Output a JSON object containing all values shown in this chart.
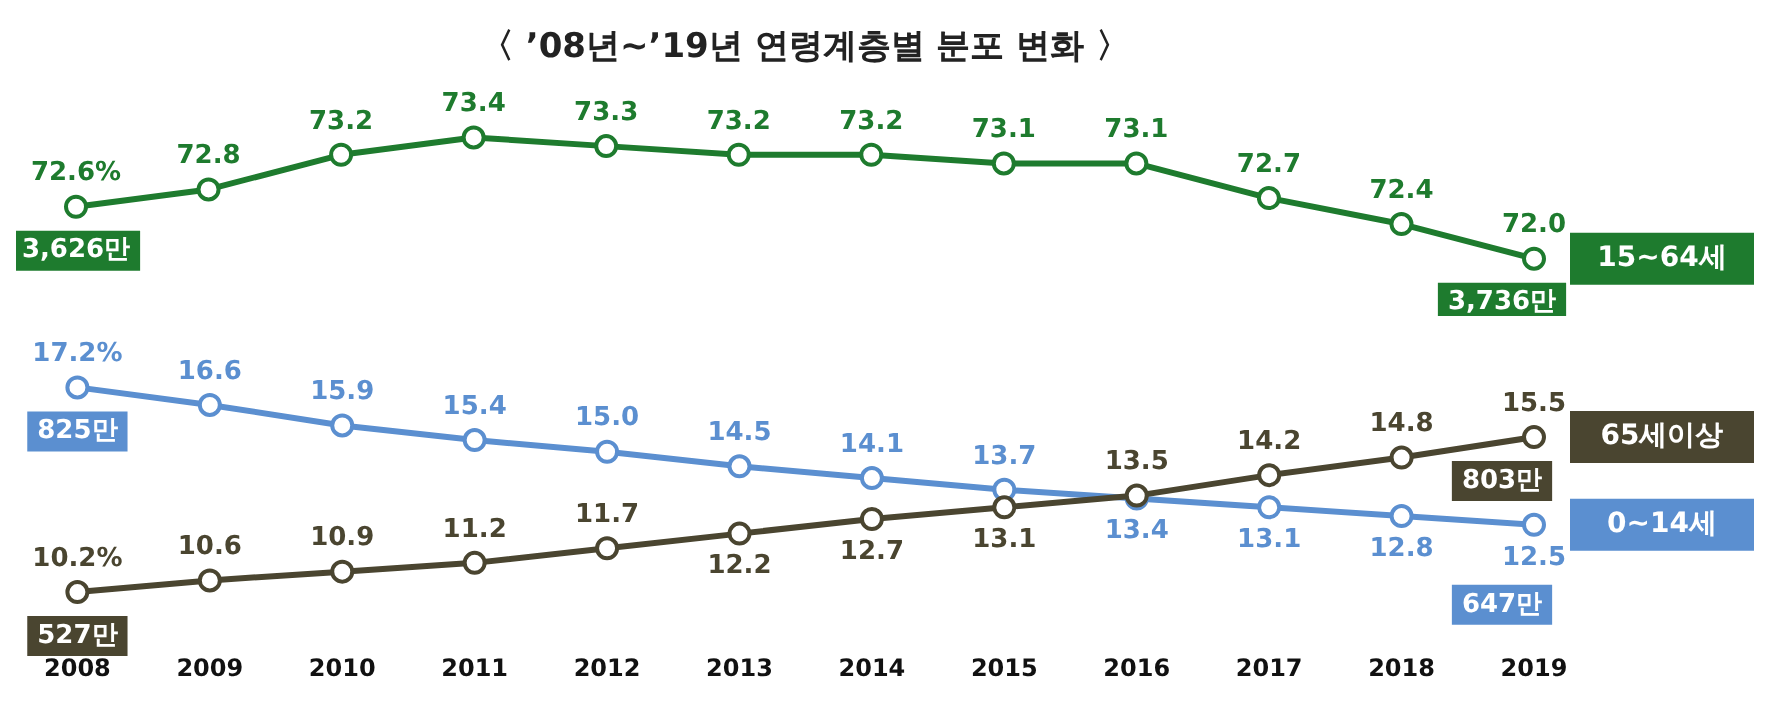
{
  "chart_data": [
    {
      "type": "line",
      "title": "〈 ’08년~’19년 연령계층별 분포 변화 〉",
      "categories": [
        "2008",
        "2009",
        "2010",
        "2011",
        "2012",
        "2013",
        "2014",
        "2015",
        "2016",
        "2017",
        "2018",
        "2019"
      ],
      "series": [
        {
          "name": "15~64세",
          "color": "#1e7b2e",
          "values": [
            72.6,
            72.8,
            73.2,
            73.4,
            73.3,
            73.2,
            73.2,
            73.1,
            73.1,
            72.7,
            72.4,
            72.0
          ],
          "value_labels": [
            "72.6%",
            "72.8",
            "73.2",
            "73.4",
            "73.3",
            "73.2",
            "73.2",
            "73.1",
            "73.1",
            "72.7",
            "72.4",
            "72.0"
          ]
        }
      ],
      "annotations": [
        {
          "text": "3,626만",
          "x": "2008",
          "y": 72.6
        },
        {
          "text": "3,736만",
          "x": "2019",
          "y": 72.0
        }
      ],
      "tick_labels": false,
      "grid": false,
      "marker": "circle",
      "line_style": "solid",
      "legend": "right"
    },
    {
      "type": "line",
      "categories": [
        "2008",
        "2009",
        "2010",
        "2011",
        "2012",
        "2013",
        "2014",
        "2015",
        "2016",
        "2017",
        "2018",
        "2019"
      ],
      "series": [
        {
          "name": "65세이상",
          "color": "#4a4530",
          "values": [
            10.2,
            10.6,
            10.9,
            11.2,
            11.7,
            12.2,
            12.7,
            13.1,
            13.5,
            14.2,
            14.8,
            15.5
          ],
          "value_labels": [
            "10.2%",
            "10.6",
            "10.9",
            "11.2",
            "11.7",
            "12.2",
            "12.7",
            "13.1",
            "13.5",
            "14.2",
            "14.8",
            "15.5"
          ]
        },
        {
          "name": "0~14세",
          "color": "#5b8fd0",
          "values": [
            17.2,
            16.6,
            15.9,
            15.4,
            15.0,
            14.5,
            14.1,
            13.7,
            13.4,
            13.1,
            12.8,
            12.5
          ],
          "value_labels": [
            "17.2%",
            "16.6",
            "15.9",
            "15.4",
            "15.0",
            "14.5",
            "14.1",
            "13.7",
            "13.4",
            "13.1",
            "12.8",
            "12.5"
          ]
        }
      ],
      "annotations": [
        {
          "text": "527만",
          "x": "2008",
          "y": 10.2
        },
        {
          "text": "803만",
          "x": "2019",
          "y": 15.5
        },
        {
          "text": "825만",
          "x": "2008",
          "y": 17.2
        },
        {
          "text": "647만",
          "x": "2019",
          "y": 12.5
        }
      ],
      "tick_labels": "x",
      "grid": false,
      "marker": "circle",
      "line_style": "solid",
      "legend": "right"
    }
  ]
}
